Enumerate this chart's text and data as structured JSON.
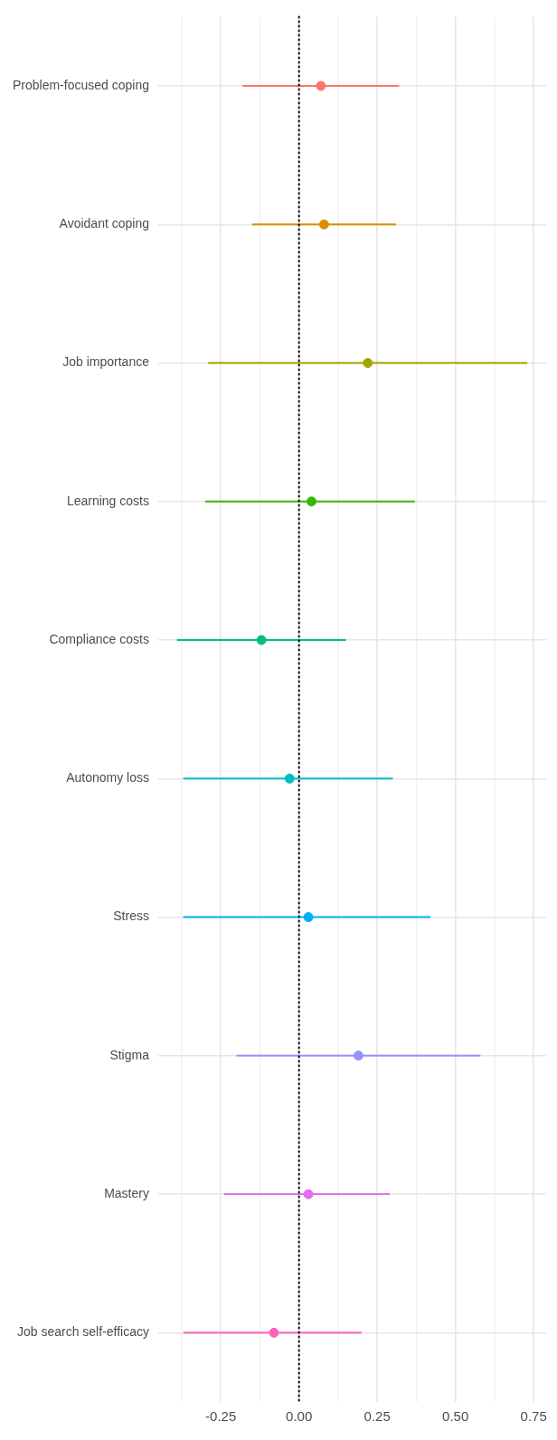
{
  "chart_data": {
    "type": "scatter",
    "orientation": "horizontal",
    "categories": [
      "Problem-focused coping",
      "Avoidant coping",
      "Job importance",
      "Learning costs",
      "Compliance costs",
      "Autonomy loss",
      "Stress",
      "Stigma",
      "Mastery",
      "Job search self-efficacy"
    ],
    "values": [
      0.07,
      0.08,
      0.22,
      0.04,
      -0.12,
      -0.03,
      0.03,
      0.19,
      0.03,
      -0.08
    ],
    "errors": [
      [
        -0.18,
        0.32
      ],
      [
        -0.15,
        0.31
      ],
      [
        -0.29,
        0.73
      ],
      [
        -0.3,
        0.37
      ],
      [
        -0.39,
        0.15
      ],
      [
        -0.37,
        0.3
      ],
      [
        -0.37,
        0.42
      ],
      [
        -0.2,
        0.58
      ],
      [
        -0.24,
        0.29
      ],
      [
        -0.37,
        0.2
      ]
    ],
    "colors": [
      "#f8766d",
      "#d89000",
      "#a3a500",
      "#39b600",
      "#00bf7d",
      "#00bfc4",
      "#00b0f6",
      "#9590ff",
      "#e76bf3",
      "#ff62bc"
    ],
    "xlim": [
      -0.45,
      0.79
    ],
    "xticks": [
      {
        "value": -0.375,
        "label": null
      },
      {
        "value": -0.25,
        "label": "-0.25"
      },
      {
        "value": -0.125,
        "label": null
      },
      {
        "value": 0,
        "label": "0.00"
      },
      {
        "value": 0.125,
        "label": null
      },
      {
        "value": 0.25,
        "label": "0.25"
      },
      {
        "value": 0.375,
        "label": null
      },
      {
        "value": 0.5,
        "label": "0.50"
      },
      {
        "value": 0.625,
        "label": null
      },
      {
        "value": 0.75,
        "label": "0.75"
      }
    ],
    "ref_lines": [
      {
        "axis": "x",
        "value": 0,
        "line_style": "dotted",
        "color": "#000000"
      }
    ],
    "grid": true,
    "marker": "circle"
  }
}
